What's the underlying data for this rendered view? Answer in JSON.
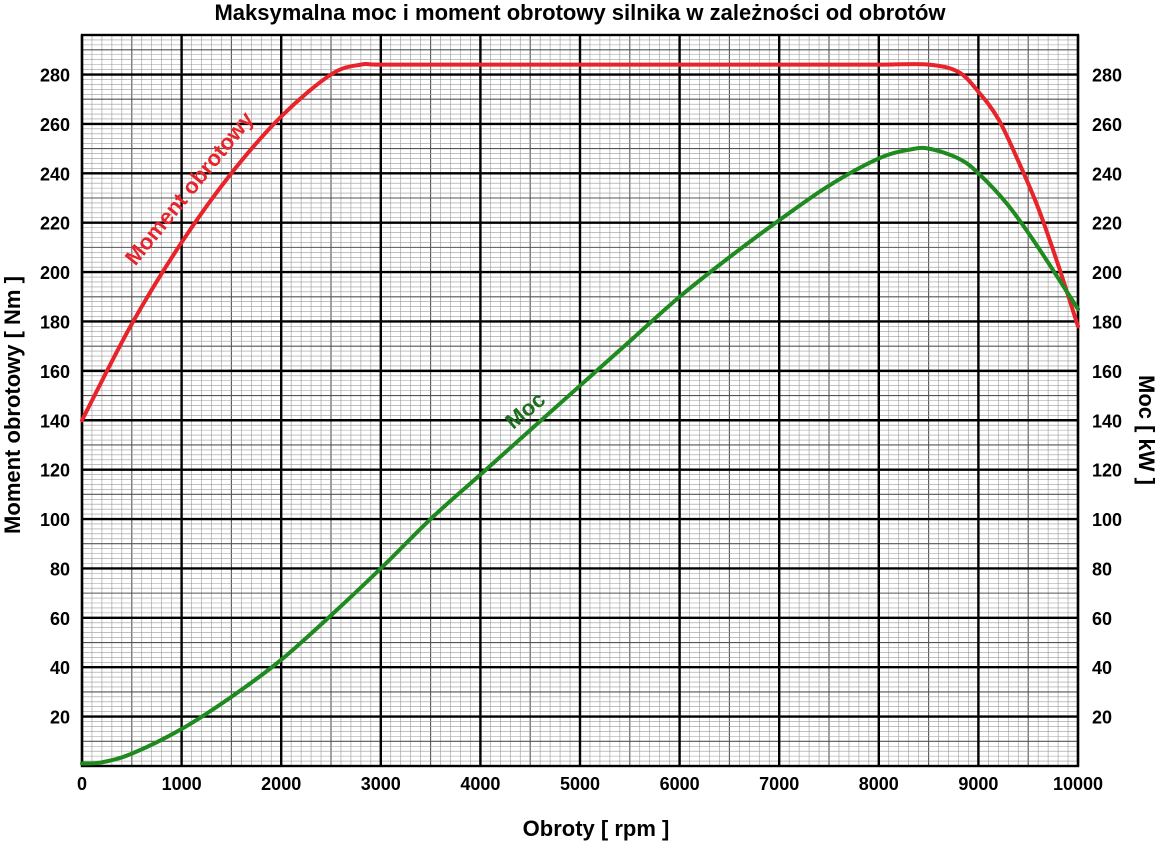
{
  "chart_data": {
    "type": "line",
    "title": "Maksymalna moc i moment obrotowy silnika w zależności od obrotów",
    "xlabel": "Obroty [ rpm ]",
    "ylabel_left": "Moment obrotowy [ Nm ]",
    "ylabel_right": "Moc [ kW ]",
    "xlim": [
      0,
      10000
    ],
    "ylim": [
      0,
      296
    ],
    "grid": "on",
    "x_ticks": [
      "0",
      "1000",
      "2000",
      "3000",
      "4000",
      "5000",
      "6000",
      "7000",
      "8000",
      "9000",
      "10000"
    ],
    "y_ticks_left": [
      "20",
      "40",
      "60",
      "80",
      "100",
      "120",
      "140",
      "160",
      "180",
      "200",
      "220",
      "240",
      "260",
      "280"
    ],
    "y_ticks_right": [
      "20",
      "40",
      "60",
      "80",
      "100",
      "120",
      "140",
      "160",
      "180",
      "200",
      "220",
      "240",
      "260",
      "280"
    ],
    "series": [
      {
        "name": "Moment obrotowy",
        "axis": "left",
        "color": "#e8232a",
        "x": [
          0,
          500,
          1000,
          1500,
          2000,
          2500,
          2800,
          3000,
          4000,
          5000,
          6000,
          7000,
          8000,
          8500,
          8800,
          9000,
          9200,
          9400,
          9600,
          9800,
          10000
        ],
        "y": [
          140,
          179,
          212,
          240,
          263,
          280,
          284,
          284,
          284,
          284,
          284,
          284,
          284,
          284,
          281,
          273,
          262,
          245,
          226,
          203,
          178
        ]
      },
      {
        "name": "Moc",
        "axis": "right",
        "color": "#1f8a1f",
        "x": [
          0,
          200,
          500,
          1000,
          1500,
          2000,
          2500,
          3000,
          3500,
          4000,
          4500,
          5000,
          5500,
          6000,
          6500,
          7000,
          7500,
          8000,
          8300,
          8500,
          8800,
          9000,
          9300,
          9600,
          10000
        ],
        "y": [
          1,
          1.5,
          5,
          15,
          28,
          43,
          61,
          80,
          100,
          118,
          136,
          154,
          172,
          190,
          206,
          221,
          235,
          246,
          249.5,
          250,
          246,
          240,
          227,
          210,
          185
        ]
      }
    ],
    "annotations": [
      {
        "text": "Moment obrotowy",
        "series": "Moment obrotowy",
        "color": "#e8232a"
      },
      {
        "text": "Moc",
        "series": "Moc",
        "color": "#1f6e1f"
      }
    ]
  }
}
